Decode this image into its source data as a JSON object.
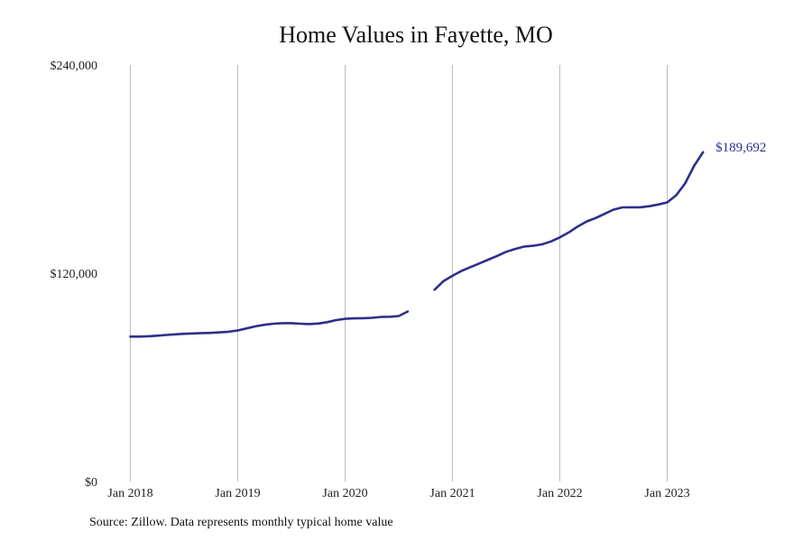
{
  "chart_data": {
    "type": "line",
    "title": "Home Values in Fayette, MO",
    "xlabel": "",
    "ylabel": "",
    "ylim": [
      0,
      240000
    ],
    "y_ticks": [
      "$0",
      "$120,000",
      "$240,000"
    ],
    "x_ticks": [
      "Jan 2018",
      "Jan 2019",
      "Jan 2020",
      "Jan 2021",
      "Jan 2022",
      "Jan 2023"
    ],
    "grid": "vertical",
    "legend": "none",
    "line_color": "#2e2e8a",
    "series": [
      {
        "segments": [
          [
            [
              "2018-01",
              83500
            ],
            [
              "2018-02",
              83500
            ],
            [
              "2018-03",
              83700
            ],
            [
              "2018-04",
              84000
            ],
            [
              "2018-05",
              84400
            ],
            [
              "2018-06",
              84800
            ],
            [
              "2018-07",
              85100
            ],
            [
              "2018-08",
              85300
            ],
            [
              "2018-09",
              85500
            ],
            [
              "2018-10",
              85600
            ],
            [
              "2018-11",
              85900
            ],
            [
              "2018-12",
              86300
            ],
            [
              "2019-01",
              87000
            ],
            [
              "2019-02",
              88200
            ],
            [
              "2019-03",
              89400
            ],
            [
              "2019-04",
              90300
            ],
            [
              "2019-05",
              90900
            ],
            [
              "2019-06",
              91200
            ],
            [
              "2019-07",
              91200
            ],
            [
              "2019-08",
              90900
            ],
            [
              "2019-09",
              90700
            ],
            [
              "2019-10",
              91000
            ],
            [
              "2019-11",
              91800
            ],
            [
              "2019-12",
              93000
            ],
            [
              "2020-01",
              93700
            ],
            [
              "2020-02",
              94000
            ],
            [
              "2020-03",
              94100
            ],
            [
              "2020-04",
              94300
            ],
            [
              "2020-05",
              94800
            ],
            [
              "2020-06",
              94900
            ],
            [
              "2020-07",
              95300
            ],
            [
              "2020-08",
              97900
            ]
          ],
          [
            [
              "2020-11",
              110500
            ],
            [
              "2020-12",
              115500
            ],
            [
              "2021-01",
              118500
            ],
            [
              "2021-02",
              121300
            ],
            [
              "2021-03",
              123500
            ],
            [
              "2021-04",
              125600
            ],
            [
              "2021-05",
              127800
            ],
            [
              "2021-06",
              130000
            ],
            [
              "2021-07",
              132300
            ],
            [
              "2021-08",
              134000
            ],
            [
              "2021-09",
              135300
            ],
            [
              "2021-10",
              135800
            ],
            [
              "2021-11",
              136600
            ],
            [
              "2021-12",
              138300
            ],
            [
              "2022-01",
              140600
            ],
            [
              "2022-02",
              143500
            ],
            [
              "2022-03",
              146900
            ],
            [
              "2022-04",
              149800
            ],
            [
              "2022-05",
              151800
            ],
            [
              "2022-06",
              154200
            ],
            [
              "2022-07",
              156600
            ],
            [
              "2022-08",
              157900
            ],
            [
              "2022-09",
              158000
            ],
            [
              "2022-10",
              158000
            ],
            [
              "2022-11",
              158600
            ],
            [
              "2022-12",
              159600
            ],
            [
              "2023-01",
              160800
            ],
            [
              "2023-02",
              164900
            ],
            [
              "2023-03",
              171700
            ],
            [
              "2023-04",
              181800
            ],
            [
              "2023-05",
              189692
            ]
          ]
        ]
      }
    ],
    "end_label": "$189,692",
    "source": "Source: Zillow. Data represents monthly typical home value"
  }
}
